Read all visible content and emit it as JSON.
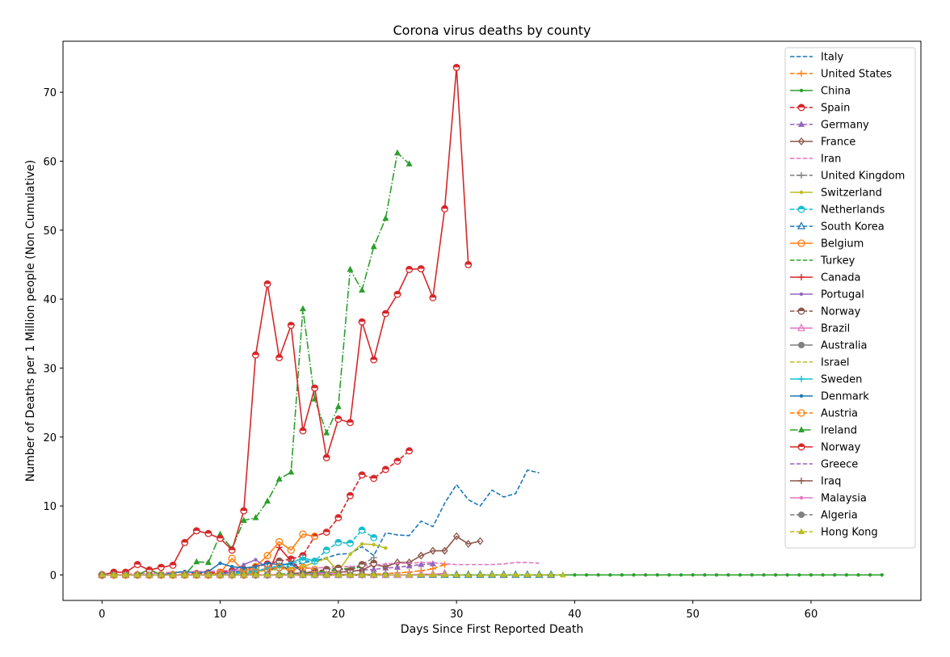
{
  "chart_data": {
    "type": "line",
    "title": "Corona virus deaths by county",
    "xlabel": "Days Since First Reported Death",
    "ylabel": "Number of Deaths per 1 Million people (Non Cumulative)",
    "xlim": [
      -3.3,
      69.3
    ],
    "ylim": [
      -3.7,
      77.4
    ],
    "xticks": [
      0,
      10,
      20,
      30,
      40,
      50,
      60
    ],
    "yticks": [
      0,
      10,
      20,
      30,
      40,
      50,
      60,
      70
    ],
    "grid": false,
    "legend_position": "upper right",
    "series": [
      {
        "name": "Italy",
        "color": "#1f77b4",
        "line": "dashed",
        "marker": "none",
        "values": [
          0,
          0,
          0,
          0,
          0,
          0,
          0,
          0,
          0,
          0.1,
          0.3,
          0.4,
          0.5,
          0.6,
          0.8,
          1.0,
          1.2,
          1.8,
          2.0,
          2.5,
          3.0,
          3.1,
          4.1,
          2.8,
          6.1,
          5.8,
          5.7,
          7.8,
          7.0,
          10.4,
          13.1,
          10.9,
          10.0,
          12.3,
          11.3,
          11.8,
          15.2,
          14.8
        ]
      },
      {
        "name": "United States",
        "color": "#ff7f0e",
        "line": "dashed",
        "marker": "plus",
        "values": [
          0,
          0,
          0,
          0,
          0,
          0,
          0,
          0,
          0,
          0,
          0,
          0,
          0,
          0,
          0,
          0,
          0,
          0,
          0,
          0.1,
          0.1,
          0.1,
          0.1,
          0.1,
          0.2,
          0.3,
          0.4,
          0.6,
          0.9,
          1.5
        ]
      },
      {
        "name": "China",
        "color": "#2ca02c",
        "line": "solid",
        "marker": "dot",
        "values": [
          0,
          0,
          0,
          0,
          0,
          0,
          0,
          0,
          0,
          0,
          0,
          0,
          0,
          0,
          0,
          0,
          0,
          0,
          0,
          0,
          0,
          0,
          0,
          0,
          0,
          0,
          0,
          0,
          0,
          0,
          0,
          0,
          0,
          0,
          0,
          0,
          0,
          0,
          0,
          0,
          0,
          0,
          0,
          0,
          0,
          0,
          0,
          0,
          0,
          0,
          0,
          0,
          0,
          0,
          0,
          0,
          0,
          0,
          0,
          0,
          0,
          0,
          0,
          0,
          0,
          0,
          0
        ]
      },
      {
        "name": "Spain",
        "color": "#d62728",
        "line": "dashed",
        "marker": "half-circle",
        "values": [
          0,
          0,
          0,
          0,
          0,
          0,
          0,
          0.1,
          0.2,
          0.3,
          0.4,
          0.6,
          0.8,
          1.2,
          1.6,
          2.0,
          2.3,
          2.8,
          5.6,
          6.2,
          8.3,
          11.5,
          14.5,
          14.0,
          15.3,
          16.5,
          18.0
        ]
      },
      {
        "name": "Germany",
        "color": "#9467bd",
        "line": "dashed",
        "marker": "triangle",
        "values": [
          0,
          0,
          0,
          0,
          0,
          0,
          0,
          0,
          0,
          0,
          0,
          0,
          0,
          0,
          0,
          0,
          0,
          0.1,
          0.2,
          0.3,
          0.4,
          0.5,
          0.7,
          0.8,
          1.0,
          1.1,
          1.3,
          1.5,
          1.6
        ]
      },
      {
        "name": "France",
        "color": "#8c564b",
        "line": "solid",
        "marker": "diamond",
        "values": [
          0,
          0,
          0,
          0,
          0,
          0,
          0,
          0,
          0,
          0,
          0,
          0,
          0,
          0,
          0,
          0,
          0,
          0.1,
          0.2,
          0.3,
          0.4,
          0.5,
          0.7,
          1.5,
          1.2,
          1.8,
          1.8,
          2.8,
          3.5,
          3.5,
          5.6,
          4.5,
          4.9
        ]
      },
      {
        "name": "Iran",
        "color": "#e377c2",
        "line": "dashed",
        "marker": "none",
        "values": [
          0,
          0,
          0.1,
          0.2,
          0.2,
          0.3,
          0.4,
          0.4,
          0.5,
          0.5,
          0.6,
          0.7,
          0.7,
          0.8,
          0.8,
          0.9,
          0.9,
          1.0,
          1.0,
          1.1,
          1.2,
          1.2,
          1.3,
          1.4,
          1.6,
          1.7,
          1.7,
          1.8,
          1.8,
          1.6,
          1.5,
          1.5,
          1.5,
          1.5,
          1.6,
          1.8,
          1.8,
          1.7
        ]
      },
      {
        "name": "United Kingdom",
        "color": "#7f7f7f",
        "line": "dashed",
        "marker": "plus",
        "values": [
          0,
          0,
          0,
          0,
          0,
          0,
          0,
          0,
          0,
          0,
          0,
          0,
          0,
          0,
          0,
          0,
          0.1,
          0.2,
          0.3,
          0.5,
          0.7,
          0.9,
          1.5,
          2.5
        ]
      },
      {
        "name": "Switzerland",
        "color": "#bcbd22",
        "line": "solid",
        "marker": "dot",
        "values": [
          0,
          0,
          0,
          0,
          0,
          0,
          0,
          0,
          0,
          0,
          0,
          0,
          0.4,
          0.5,
          0.7,
          0.8,
          1.0,
          1.2,
          1.8,
          2.4,
          0.5,
          3.0,
          4.5,
          4.4,
          3.9
        ]
      },
      {
        "name": "Netherlands",
        "color": "#17becf",
        "line": "dashed",
        "marker": "half-circle",
        "values": [
          0,
          0,
          0,
          0,
          0,
          0,
          0,
          0,
          0,
          0,
          0,
          0.2,
          0.3,
          0.5,
          0.7,
          1.0,
          1.5,
          2.1,
          2.0,
          3.6,
          4.7,
          4.6,
          6.5,
          5.4
        ]
      },
      {
        "name": "South Korea",
        "color": "#1f77b4",
        "line": "dashed",
        "marker": "triangle-open",
        "values": [
          0,
          0,
          0,
          0,
          0,
          0,
          0,
          0,
          0,
          0,
          0,
          0,
          0,
          0,
          0,
          0,
          0,
          0,
          0,
          0,
          0,
          0,
          0,
          0,
          0,
          0,
          0,
          0,
          0,
          0,
          0,
          0,
          0,
          0,
          0,
          0,
          0,
          0,
          0
        ]
      },
      {
        "name": "Belgium",
        "color": "#ff7f0e",
        "line": "solid",
        "marker": "circle-open",
        "values": [
          0,
          0,
          0,
          0,
          0,
          0,
          0,
          0,
          0,
          0,
          0.3,
          2.4,
          0.5,
          1.2,
          2.8,
          4.8,
          3.6,
          5.9,
          5.6
        ]
      },
      {
        "name": "Turkey",
        "color": "#2ca02c",
        "line": "dashed",
        "marker": "none",
        "values": [
          0,
          0,
          0,
          0,
          0,
          0,
          0,
          0,
          0,
          0,
          0,
          0,
          0,
          0,
          0,
          0.1,
          0.2,
          0.3,
          0.4,
          0.6,
          0.8,
          1.0,
          1.1
        ]
      },
      {
        "name": "Canada",
        "color": "#d62728",
        "line": "solid",
        "marker": "plus",
        "values": [
          0,
          0,
          0,
          0,
          0,
          0,
          0,
          0,
          0,
          0,
          0,
          0,
          0,
          0,
          0,
          4.0,
          2.0,
          0.5
        ]
      },
      {
        "name": "Portugal",
        "color": "#9467bd",
        "line": "solid",
        "marker": "dot",
        "values": [
          0,
          0,
          0,
          0,
          0,
          0,
          0,
          0,
          0,
          0,
          0,
          0.5,
          1.5,
          2.2,
          1.0
        ]
      },
      {
        "name": "Norway",
        "color": "#8c564b",
        "line": "dashed",
        "marker": "half-circle",
        "values": [
          0,
          0,
          0,
          0,
          0,
          0,
          0,
          0,
          0,
          0,
          0,
          0,
          0,
          0,
          0,
          2.0,
          0.2,
          0.3,
          0.5,
          0.8,
          1.0,
          0.6,
          1.5,
          1.7
        ]
      },
      {
        "name": "Brazil",
        "color": "#e377c2",
        "line": "solid",
        "marker": "triangle-open",
        "values": [
          0,
          0,
          0,
          0,
          0,
          0,
          0,
          0,
          0,
          0,
          0,
          0,
          0,
          0,
          0,
          0,
          0,
          0,
          0,
          0,
          0,
          0,
          0,
          0,
          0,
          0,
          0,
          0.1,
          0.1,
          0.2
        ]
      },
      {
        "name": "Australia",
        "color": "#7f7f7f",
        "line": "solid",
        "marker": "dot-large",
        "values": [
          0,
          0,
          0,
          0,
          0,
          0,
          0,
          0,
          0,
          0,
          0,
          0,
          0,
          0,
          0,
          0,
          0,
          0,
          0,
          0,
          0,
          0,
          0
        ]
      },
      {
        "name": "Israel",
        "color": "#bcbd22",
        "line": "dashed",
        "marker": "none",
        "values": [
          0,
          0,
          0,
          0,
          0,
          0,
          0,
          0,
          0,
          0,
          0,
          0,
          0,
          0,
          0,
          0,
          0,
          0,
          0.2,
          0.3,
          0.5
        ]
      },
      {
        "name": "Sweden",
        "color": "#17becf",
        "line": "solid",
        "marker": "plus",
        "values": [
          0,
          0,
          0,
          0,
          0,
          0,
          0,
          0,
          0,
          0,
          0,
          0,
          0,
          0.5,
          1.0,
          1.3,
          1.7,
          2.5,
          2.0
        ]
      },
      {
        "name": "Denmark",
        "color": "#1f77b4",
        "line": "solid",
        "marker": "dot",
        "values": [
          0,
          0,
          0,
          0,
          0,
          0,
          0.3,
          0.5,
          0.3,
          0.5,
          1.7,
          1.2,
          1.0,
          1.2,
          1.7,
          1.5,
          1.6,
          0.4
        ]
      },
      {
        "name": "Austria",
        "color": "#ff7f0e",
        "line": "dashed",
        "marker": "circle-open",
        "values": [
          0,
          0,
          0,
          0,
          0,
          0,
          0,
          0,
          0,
          0,
          0,
          0,
          0,
          0.3,
          0.8,
          1.1,
          0.6,
          1.1,
          0.8
        ]
      },
      {
        "name": "Ireland",
        "color": "#2ca02c",
        "line": "dashdot",
        "marker": "triangle",
        "values": [
          0,
          0,
          0,
          0,
          0.8,
          0,
          0,
          0,
          1.9,
          1.8,
          5.9,
          3.8,
          7.9,
          8.3,
          10.7,
          13.9,
          14.9,
          38.6,
          25.5,
          20.6,
          24.4,
          44.3,
          41.3,
          47.6,
          51.7,
          61.2,
          59.6
        ]
      },
      {
        "name": "Norway",
        "color": "#d62728",
        "line": "solid",
        "marker": "half-circle",
        "values": [
          0,
          0.4,
          0.4,
          1.5,
          0.7,
          1.1,
          1.4,
          4.7,
          6.4,
          6.0,
          5.3,
          3.6,
          9.3,
          31.9,
          42.2,
          31.5,
          36.2,
          20.9,
          27.1,
          17.0,
          22.6,
          22.1,
          36.7,
          31.2,
          37.9,
          40.7,
          44.3,
          44.4,
          40.2,
          53.1,
          73.6,
          45.0
        ]
      },
      {
        "name": "Greece",
        "color": "#9467bd",
        "line": "dashed",
        "marker": "none",
        "values": [
          0,
          0,
          0,
          0,
          0,
          0,
          0,
          0,
          0,
          0,
          0,
          0,
          0,
          0,
          0,
          0,
          0,
          0.1,
          0.2,
          0.3
        ]
      },
      {
        "name": "Iraq",
        "color": "#8c564b",
        "line": "solid",
        "marker": "plus",
        "values": [
          0,
          0,
          0,
          0,
          0,
          0,
          0,
          0,
          0,
          0,
          0,
          0,
          0,
          0,
          0,
          0,
          0,
          0,
          0,
          0,
          0,
          0,
          0,
          0
        ]
      },
      {
        "name": "Malaysia",
        "color": "#e377c2",
        "line": "solid",
        "marker": "dot",
        "values": [
          0,
          0,
          0,
          0,
          0,
          0,
          0,
          0,
          0,
          0,
          0,
          0,
          0,
          0,
          0,
          0,
          0,
          0.1,
          0.1,
          0.2,
          0.2
        ]
      },
      {
        "name": "Algeria",
        "color": "#7f7f7f",
        "line": "dashed",
        "marker": "dot-large",
        "values": [
          0,
          0,
          0,
          0,
          0,
          0,
          0,
          0,
          0,
          0,
          0,
          0,
          0,
          0,
          0,
          0,
          0,
          0,
          0,
          0,
          0,
          0,
          0,
          0,
          0
        ]
      },
      {
        "name": "Hong Kong",
        "color": "#bcbd22",
        "line": "dashed",
        "marker": "triangle",
        "values": [
          0,
          0,
          0,
          0,
          0,
          0,
          0,
          0,
          0,
          0,
          0,
          0,
          0,
          0,
          0,
          0,
          0,
          0,
          0,
          0,
          0,
          0,
          0,
          0,
          0,
          0,
          0,
          0,
          0,
          0,
          0,
          0,
          0,
          0,
          0,
          0,
          0,
          0,
          0,
          0
        ]
      }
    ]
  }
}
